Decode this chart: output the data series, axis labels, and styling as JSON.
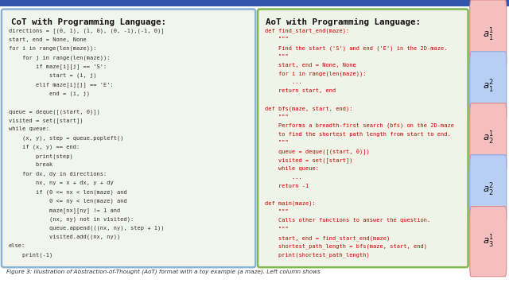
{
  "title_left": "CoT with Programming Language:",
  "title_right": "AoT with Programming Language:",
  "cot_code": [
    "directions = [(0, 1), (1, 0), (0, -1),(-1, 0)]",
    "start, end = None, None",
    "for i in range(len(maze)):",
    "    for j in range(len(maze)):",
    "        if maze[i][j] == 'S':",
    "            start = (i, j)",
    "        elif maze[i][j] == 'E':",
    "            end = (i, j)",
    "",
    "queue = deque([(start, 0)])",
    "visited = set([start])",
    "while queue:",
    "    (x, y), step = queue.popleft()",
    "    if (x, y) == end:",
    "        print(step)",
    "        break",
    "    for dx, dy in directions:",
    "        nx, ny = x + dx, y + dy",
    "        if (0 <= nx < len(maze) and",
    "            0 <= ny < len(maze) and",
    "            maze[nx][ny] != 1 and",
    "            (nx, ny) not in visited):",
    "            queue.append(((nx, ny), step + 1))",
    "            visited.add((nx, ny))",
    "else:",
    "    print(-1)"
  ],
  "aot_code": [
    "def find_start_end(maze):",
    "    \"\"\"",
    "    Find the start ('S') and end ('E') in the 2D-maze.",
    "    \"\"\"",
    "    start, end = None, None",
    "    for i in range(len(maze)):",
    "        ...",
    "    return start, end",
    "",
    "def bfs(maze, start, end):",
    "    \"\"\"",
    "    Performs a breadth-first search (bfs) on the 2D-maze",
    "    to find the shortest path length from start to end.",
    "    \"\"\"",
    "    queue = deque([(start, 0)])",
    "    visited = set([start])",
    "    while queue:",
    "        ...",
    "    return -1",
    "",
    "def main(maze):",
    "    \"\"\"",
    "    Calls other functions to answer the question.",
    "    \"\"\"",
    "    start, end = find_start_end(maze)",
    "    shortest_path_length = bfs(maze, start, end)",
    "    print(shortest_path_length)"
  ],
  "label_texts": [
    "$a_1^1$",
    "$a_1^2$",
    "$a_2^1$",
    "$a_2^2$",
    "$a_3^1$"
  ],
  "label_colors": [
    "#f5bfbf",
    "#b8cef5",
    "#f5bfbf",
    "#b8cef5",
    "#f5bfbf"
  ],
  "label_border_colors": [
    "#e08888",
    "#88a8e0",
    "#e08888",
    "#88a8e0",
    "#e08888"
  ],
  "bg_left": "#f2f4ee",
  "bg_right": "#f0f4e8",
  "border_left": "#8ab4d4",
  "border_right": "#80b850",
  "fig_bg": "#ffffff",
  "top_bar_color": "#3355aa",
  "caption": "Figure 3: Illustration of Abstraction-of-Thought (AoT) format with a toy example (a maze). Left column shows",
  "code_color_red": "#cc0000",
  "code_color_black": "#333333",
  "title_fontsize": 7.8,
  "code_fontsize": 5.0
}
